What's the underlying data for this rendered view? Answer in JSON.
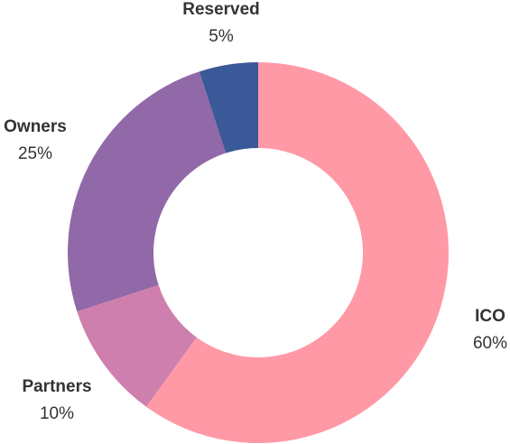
{
  "chart_data": {
    "type": "pie",
    "donut": true,
    "categories": [
      "ICO",
      "Partners",
      "Owners",
      "Reserved"
    ],
    "values": [
      60,
      10,
      25,
      5
    ],
    "value_labels": [
      "60%",
      "10%",
      "25%",
      "5%"
    ],
    "colors": [
      "#ff99a6",
      "#cf7fad",
      "#9169a8",
      "#3b5998"
    ],
    "start_angle": "12 o'clock",
    "direction": "clockwise",
    "legend": "none",
    "title": ""
  }
}
